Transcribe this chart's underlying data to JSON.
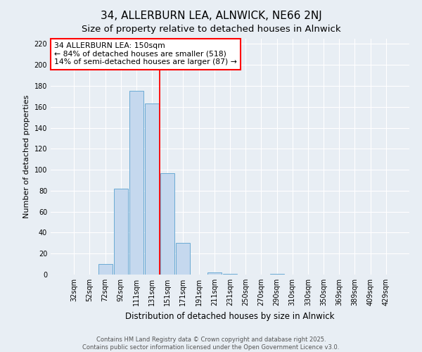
{
  "title": "34, ALLERBURN LEA, ALNWICK, NE66 2NJ",
  "subtitle": "Size of property relative to detached houses in Alnwick",
  "xlabel": "Distribution of detached houses by size in Alnwick",
  "ylabel": "Number of detached properties",
  "bar_labels": [
    "32sqm",
    "52sqm",
    "72sqm",
    "92sqm",
    "111sqm",
    "131sqm",
    "151sqm",
    "171sqm",
    "191sqm",
    "211sqm",
    "231sqm",
    "250sqm",
    "270sqm",
    "290sqm",
    "310sqm",
    "330sqm",
    "350sqm",
    "369sqm",
    "389sqm",
    "409sqm",
    "429sqm"
  ],
  "bar_values": [
    0,
    0,
    10,
    82,
    175,
    163,
    97,
    30,
    0,
    2,
    1,
    0,
    0,
    1,
    0,
    0,
    0,
    0,
    0,
    0,
    0
  ],
  "bar_color": "#c5d8ee",
  "bar_edgecolor": "#6aaad4",
  "annotation_line1": "34 ALLERBURN LEA: 150sqm",
  "annotation_line2": "← 84% of detached houses are smaller (518)",
  "annotation_line3": "14% of semi-detached houses are larger (87) →",
  "ylim": [
    0,
    225
  ],
  "yticks": [
    0,
    20,
    40,
    60,
    80,
    100,
    120,
    140,
    160,
    180,
    200,
    220
  ],
  "footer_line1": "Contains HM Land Registry data © Crown copyright and database right 2025.",
  "footer_line2": "Contains public sector information licensed under the Open Government Licence v3.0.",
  "background_color": "#e8eef4",
  "plot_background_color": "#e8eef4",
  "grid_color": "#ffffff",
  "title_fontsize": 11,
  "subtitle_fontsize": 9.5,
  "tick_fontsize": 7,
  "ylabel_fontsize": 8,
  "xlabel_fontsize": 8.5
}
